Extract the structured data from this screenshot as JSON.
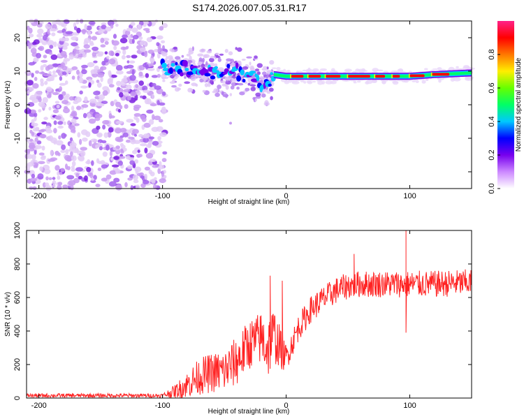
{
  "title": "S174.2026.007.05.31.R17",
  "chart_data": [
    {
      "type": "heatmap",
      "name": "spectrogram",
      "xlabel": "Height of straight line (km)",
      "ylabel": "Frequency (Hz)",
      "xlim": [
        -210,
        150
      ],
      "ylim": [
        -25,
        25
      ],
      "xticks": [
        -200,
        -100,
        0,
        100
      ],
      "xtick_labels": [
        "-200",
        "-100",
        "0",
        "100"
      ],
      "yticks": [
        20,
        10,
        0,
        -10,
        -20
      ],
      "ytick_labels": [
        "20",
        "10",
        "0",
        "-10",
        "-20"
      ],
      "colorbar": {
        "label": "Normalized spectral amplitude",
        "range": [
          0,
          1
        ],
        "ticks": [
          0,
          0.2,
          0.4,
          0.6,
          0.8
        ],
        "tick_labels": [
          "0.0",
          "0.2",
          "0.4",
          "0.6",
          "0.8"
        ],
        "colors": [
          "#ffffff",
          "#cc88ff",
          "#7700ee",
          "#0000ff",
          "#00c8ff",
          "#00ff66",
          "#66ff00",
          "#ffee00",
          "#ff7700",
          "#ff0000",
          "#ff2288"
        ]
      },
      "ridge": {
        "description": "dominant frequency track",
        "x": [
          -100,
          -90,
          -80,
          -70,
          -60,
          -50,
          -40,
          -30,
          -20,
          -15,
          -10,
          0,
          20,
          40,
          60,
          80,
          100,
          120,
          150
        ],
        "y": [
          11,
          10.5,
          10.5,
          10,
          9.5,
          9.5,
          10,
          8.5,
          6.5,
          7,
          9,
          8.5,
          8.5,
          8.5,
          8.5,
          8.5,
          8.5,
          9,
          9.5
        ]
      }
    },
    {
      "type": "line",
      "name": "snr",
      "xlabel": "Height of straight line (km)",
      "ylabel": "SNR (10 * v/v)",
      "xlim": [
        -210,
        150
      ],
      "ylim": [
        0,
        1000
      ],
      "xticks": [
        -200,
        -100,
        0,
        100
      ],
      "xtick_labels": [
        "-200",
        "-100",
        "0",
        "100"
      ],
      "yticks": [
        0,
        200,
        400,
        600,
        800,
        1000
      ],
      "ytick_labels": [
        "0",
        "200",
        "400",
        "600",
        "800",
        "1000"
      ],
      "series_color": "#ff2222",
      "envelope": {
        "x": [
          -210,
          -100,
          -90,
          -80,
          -70,
          -60,
          -50,
          -40,
          -30,
          -20,
          -15,
          -10,
          -5,
          0,
          10,
          20,
          30,
          40,
          50,
          60,
          80,
          100,
          120,
          150
        ],
        "mean": [
          15,
          15,
          40,
          80,
          130,
          150,
          160,
          220,
          320,
          360,
          300,
          380,
          300,
          240,
          420,
          530,
          590,
          640,
          670,
          680,
          680,
          680,
          680,
          690
        ],
        "spread": [
          12,
          12,
          40,
          80,
          110,
          120,
          130,
          150,
          150,
          160,
          200,
          170,
          130,
          80,
          80,
          80,
          80,
          80,
          80,
          80,
          80,
          80,
          80,
          80
        ]
      },
      "spikes": [
        {
          "x": -13,
          "y": 730
        },
        {
          "x": -3,
          "y": 700
        },
        {
          "x": 97,
          "y": 1000
        },
        {
          "x": 97,
          "y": 390
        },
        {
          "x": 55,
          "y": 860
        }
      ]
    }
  ]
}
